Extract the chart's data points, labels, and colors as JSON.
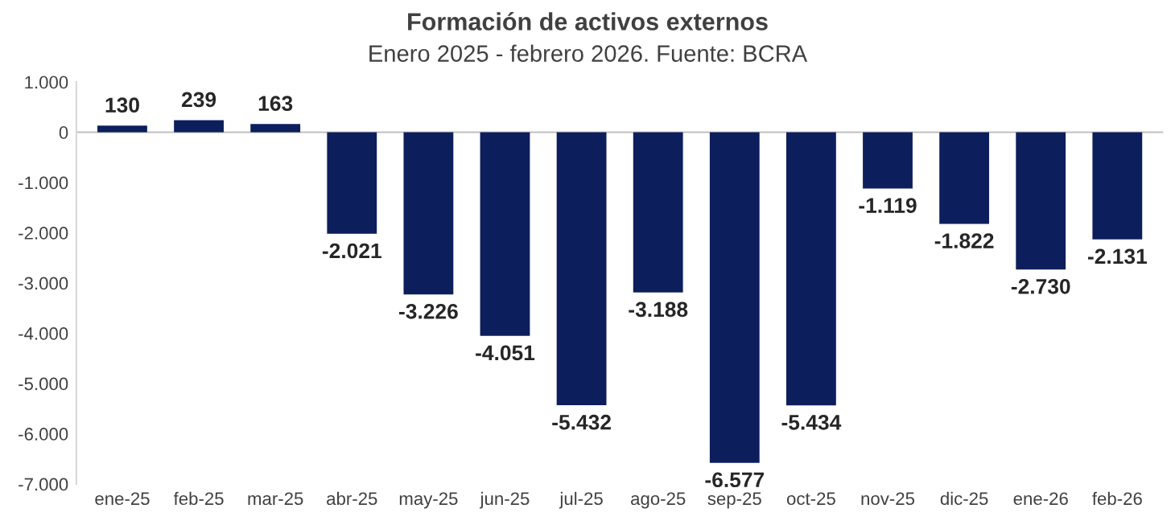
{
  "chart_data": {
    "type": "bar",
    "title": "Formación de activos externos",
    "subtitle": "Enero 2025 - febrero 2026. Fuente: BCRA",
    "categories": [
      "ene-25",
      "feb-25",
      "mar-25",
      "abr-25",
      "may-25",
      "jun-25",
      "jul-25",
      "ago-25",
      "sep-25",
      "oct-25",
      "nov-25",
      "dic-25",
      "ene-26",
      "feb-26"
    ],
    "values": [
      130,
      239,
      163,
      -2021,
      -3226,
      -4051,
      -5432,
      -3188,
      -6577,
      -5434,
      -1119,
      -1822,
      -2730,
      -2131
    ],
    "value_labels": [
      "130",
      "239",
      "163",
      "-2.021",
      "-3.226",
      "-4.051",
      "-5.432",
      "-3.188",
      "-6.577",
      "-5.434",
      "-1.119",
      "-1.822",
      "-2.730",
      "-2.131"
    ],
    "color": "#0d1e5c",
    "ylim": [
      -7000,
      1000
    ],
    "yticks": [
      {
        "value": -7000,
        "label": "-7.000"
      },
      {
        "value": -6000,
        "label": "-6.000"
      },
      {
        "value": -5000,
        "label": "-5.000"
      },
      {
        "value": -4000,
        "label": "-4.000"
      },
      {
        "value": -3000,
        "label": "-3.000"
      },
      {
        "value": -2000,
        "label": "-2.000"
      },
      {
        "value": -1000,
        "label": "-1.000"
      },
      0,
      {
        "value": 1000,
        "label": "1.000"
      }
    ],
    "ref_lines": [
      {
        "axis": "y",
        "value": 0,
        "color": "#bfbfbf"
      }
    ],
    "grid": false,
    "legend": false
  }
}
